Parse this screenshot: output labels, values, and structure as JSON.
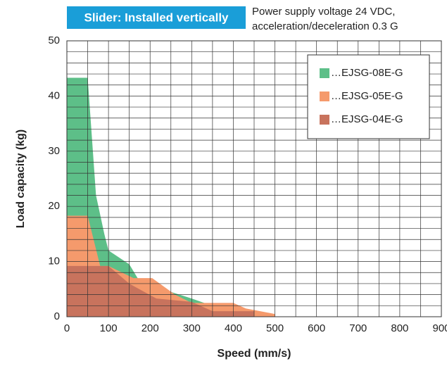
{
  "chart_data": {
    "type": "area",
    "title": "Slider: Installed vertically",
    "subtitle": [
      "Power supply voltage 24 VDC,",
      "acceleration/deceleration 0.3 G"
    ],
    "x_label": "Speed (mm/s)",
    "y_label": "Load capacity (kg)",
    "xlim": [
      0,
      900
    ],
    "xticks": [
      0,
      100,
      200,
      300,
      400,
      500,
      600,
      700,
      800,
      900
    ],
    "ylim": [
      0,
      50
    ],
    "yticks": [
      0,
      10,
      20,
      30,
      40,
      50
    ],
    "grid": true,
    "legend": "upper right",
    "series": [
      {
        "name": "…EJSG-08E-G",
        "color": "#5dbf88",
        "x": [
          0,
          50,
          70,
          90,
          100,
          150,
          170,
          200,
          250,
          300,
          330,
          350
        ],
        "values": [
          43.3,
          43.3,
          22,
          15,
          12,
          9.5,
          7,
          6,
          4.5,
          3.3,
          2.5,
          1
        ]
      },
      {
        "name": "…EJSG-05E-G",
        "color": "#f59a6c",
        "x": [
          0,
          50,
          80,
          100,
          160,
          205,
          260,
          300,
          400,
          430,
          500
        ],
        "values": [
          18.3,
          18.3,
          9.2,
          9.2,
          7,
          7,
          4,
          2.5,
          2.5,
          1.5,
          0.5
        ]
      },
      {
        "name": "…EJSG-04E-G",
        "color": "#c8735d",
        "x": [
          0,
          100,
          150,
          215,
          300,
          350,
          450
        ],
        "values": [
          9.2,
          9.2,
          6,
          3.3,
          2.7,
          1,
          1
        ]
      }
    ]
  }
}
